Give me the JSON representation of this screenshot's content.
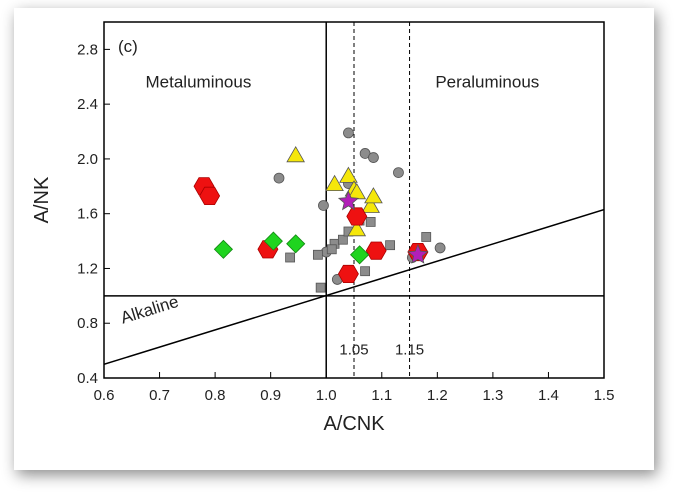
{
  "chart_data": {
    "type": "scatter",
    "panel_label": "(c)",
    "xlabel": "A/CNK",
    "ylabel": "A/NK",
    "xlim": [
      0.6,
      1.5
    ],
    "ylim": [
      0.4,
      3.0
    ],
    "xticks": [
      0.6,
      0.7,
      0.8,
      0.9,
      1.0,
      1.1,
      1.2,
      1.3,
      1.4,
      1.5
    ],
    "yticks": [
      0.4,
      0.8,
      1.2,
      1.6,
      2.0,
      2.4,
      2.8
    ],
    "xtick_labels": [
      "0.6",
      "0.7",
      "0.8",
      "0.9",
      "1.0",
      "1.1",
      "1.2",
      "1.3",
      "1.4",
      "1.5"
    ],
    "ytick_labels": [
      "0.4",
      "0.8",
      "1.2",
      "1.6",
      "2.0",
      "2.4",
      "2.8"
    ],
    "grid": false,
    "regions": [
      {
        "label": "Metaluminous",
        "x": 0.77,
        "y": 2.52
      },
      {
        "label": "Peraluminous",
        "x": 1.29,
        "y": 2.52
      },
      {
        "label": "Alkaline",
        "x": 0.685,
        "y": 0.86
      }
    ],
    "reference_lines": [
      {
        "type": "vertical",
        "x": 1.0,
        "style": "solid"
      },
      {
        "type": "horizontal",
        "y": 1.0,
        "style": "solid"
      },
      {
        "type": "vertical",
        "x": 1.05,
        "style": "dashed",
        "label": "1.05"
      },
      {
        "type": "vertical",
        "x": 1.15,
        "style": "dashed",
        "label": "1.15"
      },
      {
        "type": "diagonal",
        "from": [
          0.6,
          0.5
        ],
        "to": [
          1.5,
          1.63
        ],
        "style": "solid"
      }
    ],
    "series": [
      {
        "marker": "circle",
        "color": "#8c8c8c",
        "points": [
          [
            0.915,
            1.86
          ],
          [
            1.04,
            2.19
          ],
          [
            1.07,
            2.04
          ],
          [
            1.085,
            2.01
          ],
          [
            1.13,
            1.9
          ],
          [
            0.995,
            1.66
          ],
          [
            1.045,
            1.72
          ],
          [
            1.0,
            1.32
          ],
          [
            1.02,
            1.12
          ],
          [
            1.155,
            1.28
          ],
          [
            1.205,
            1.35
          ],
          [
            1.04,
            1.82
          ]
        ]
      },
      {
        "marker": "square",
        "color": "#8c8c8c",
        "points": [
          [
            0.985,
            1.3
          ],
          [
            0.935,
            1.28
          ],
          [
            1.015,
            1.38
          ],
          [
            1.03,
            1.41
          ],
          [
            1.04,
            1.47
          ],
          [
            1.06,
            1.55
          ],
          [
            1.08,
            1.54
          ],
          [
            1.115,
            1.37
          ],
          [
            1.18,
            1.43
          ],
          [
            1.07,
            1.18
          ],
          [
            0.99,
            1.06
          ],
          [
            1.01,
            1.34
          ]
        ]
      },
      {
        "marker": "triangle",
        "color": "#f5e70a",
        "points": [
          [
            0.945,
            2.03
          ],
          [
            1.015,
            1.82
          ],
          [
            1.04,
            1.88
          ],
          [
            1.05,
            1.78
          ],
          [
            1.08,
            1.66
          ],
          [
            1.085,
            1.73
          ],
          [
            1.055,
            1.49
          ],
          [
            1.055,
            1.76
          ]
        ]
      },
      {
        "marker": "hexagon",
        "color": "#ee1111",
        "points": [
          [
            0.78,
            1.8
          ],
          [
            0.79,
            1.73
          ],
          [
            0.895,
            1.34
          ],
          [
            1.055,
            1.58
          ],
          [
            1.09,
            1.33
          ],
          [
            1.04,
            1.16
          ],
          [
            1.165,
            1.32
          ]
        ]
      },
      {
        "marker": "diamond",
        "color": "#1fd41f",
        "points": [
          [
            0.815,
            1.34
          ],
          [
            0.905,
            1.4
          ],
          [
            0.945,
            1.38
          ],
          [
            1.06,
            1.3
          ]
        ]
      },
      {
        "marker": "star",
        "color": "#b21fb8",
        "points": [
          [
            1.04,
            1.69
          ],
          [
            1.165,
            1.3
          ]
        ]
      }
    ]
  }
}
